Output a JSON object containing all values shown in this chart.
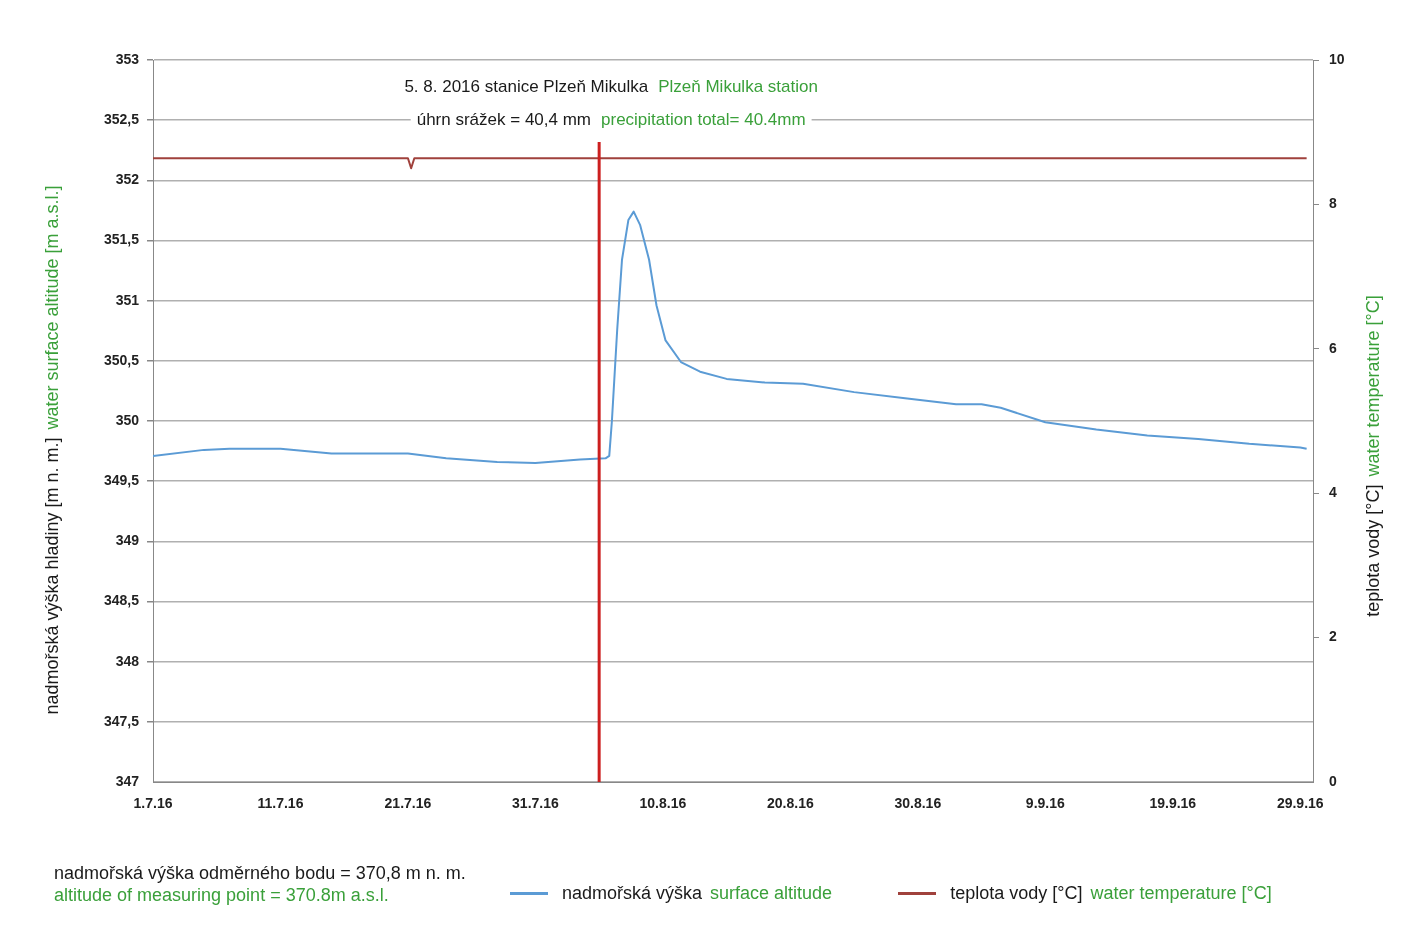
{
  "chart_data": {
    "type": "line",
    "ylabel": "nadmořská výška hladiny [m n. m.]  water surface altitude [m a.s.l.]",
    "y2label": "teplota vody [°C]  water temperature [°C]",
    "annotations": [
      "5. 8. 2016 stanice Plzeň Mikulka",
      "Plzeň Mikulka station",
      "úhrn srážek = 40,4 mm",
      "precipitation total= 40.4mm",
      "nadmořská výška odměrného bodu = 370,8 m n. m.",
      "altitude of measuring point = 370.8m a.s.l."
    ],
    "series": [
      {
        "name": "nadmořská výška  surface altitude",
        "color": "#5b9bd5",
        "x": [
          "2016-07-01",
          "2016-07-05",
          "2016-07-07",
          "2016-07-11",
          "2016-07-15",
          "2016-07-19",
          "2016-07-21",
          "2016-07-24",
          "2016-07-28",
          "2016-07-31",
          "2016-08-03T12:00",
          "2016-08-05T12:00",
          "2016-08-05T19:00",
          "2016-08-06",
          "2016-08-06T10:00",
          "2016-08-06T19:00",
          "2016-08-07T07:00",
          "2016-08-07T17:00",
          "2016-08-08T05:00",
          "2016-08-08T22:00",
          "2016-08-09T12:00",
          "2016-08-10T05:00",
          "2016-08-11T10:00",
          "2016-08-12T22:00",
          "2016-08-15",
          "2016-08-18",
          "2016-08-21",
          "2016-08-25",
          "2016-08-29",
          "2016-09-02",
          "2016-09-04",
          "2016-09-05T12:00",
          "2016-09-09",
          "2016-09-13",
          "2016-09-17",
          "2016-09-21",
          "2016-09-25",
          "2016-09-29",
          "2016-09-29T12:00"
        ],
        "values": [
          349.71,
          349.76,
          349.77,
          349.77,
          349.73,
          349.73,
          349.73,
          349.69,
          349.66,
          349.65,
          349.68,
          349.69,
          349.71,
          350.0,
          350.76,
          351.34,
          351.67,
          351.74,
          351.63,
          351.34,
          350.96,
          350.67,
          350.49,
          350.41,
          350.35,
          350.32,
          350.31,
          350.24,
          350.19,
          350.14,
          350.14,
          350.11,
          349.99,
          349.93,
          349.88,
          349.85,
          349.81,
          349.78,
          349.77
        ]
      },
      {
        "name": "teplota vody [°C]  water temperature [°C]",
        "color": "#a0413c",
        "axis": "y2",
        "x": [
          "2016-07-01",
          "2016-07-11",
          "2016-07-21",
          "2016-07-21T06:00",
          "2016-07-21T12:00",
          "2016-07-31",
          "2016-08-10",
          "2016-08-20",
          "2016-08-30",
          "2016-09-09",
          "2016-09-19",
          "2016-09-29T12:00"
        ],
        "values": [
          8.64,
          8.64,
          8.64,
          8.5,
          8.64,
          8.64,
          8.64,
          8.64,
          8.64,
          8.64,
          8.64,
          8.64
        ]
      }
    ],
    "xlim": [
      "2016-07-01",
      "2016-09-30"
    ],
    "xticks": [
      {
        "value": "2016-07-01",
        "label": "1.7.16"
      },
      {
        "value": "2016-07-11",
        "label": "11.7.16"
      },
      {
        "value": "2016-07-21",
        "label": "21.7.16"
      },
      {
        "value": "2016-07-31",
        "label": "31.7.16"
      },
      {
        "value": "2016-08-10",
        "label": "10.8.16"
      },
      {
        "value": "2016-08-20",
        "label": "20.8.16"
      },
      {
        "value": "2016-08-30",
        "label": "30.8.16"
      },
      {
        "value": "2016-09-09",
        "label": "9.9.16"
      },
      {
        "value": "2016-09-19",
        "label": "19.9.16"
      },
      {
        "value": "2016-09-29",
        "label": "29.9.16"
      }
    ],
    "ylim": [
      347,
      353
    ],
    "yticks": [
      347,
      {
        "value": 347.5,
        "label": "347,5"
      },
      348,
      {
        "value": 348.5,
        "label": "348,5"
      },
      349,
      {
        "value": 349.5,
        "label": "349,5"
      },
      350,
      {
        "value": 350.5,
        "label": "350,5"
      },
      351,
      {
        "value": 351.5,
        "label": "351,5"
      },
      352,
      {
        "value": 352.5,
        "label": "352,5"
      },
      353
    ],
    "y2lim": [
      0,
      10
    ],
    "y2ticks": [
      0,
      2,
      4,
      6,
      8,
      10
    ],
    "ref_lines": [
      {
        "axis": "x",
        "value": "2016-08-05",
        "color": "#cc1f1f"
      }
    ],
    "grid": "y",
    "legend": "bottom",
    "marker": "none",
    "line_style": "solid"
  }
}
